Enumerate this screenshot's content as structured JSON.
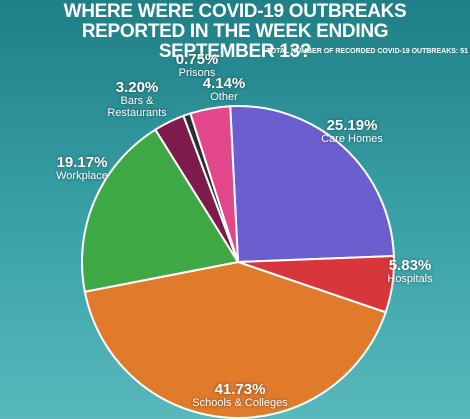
{
  "chart_data": {
    "type": "pie",
    "title": "WHERE WERE COVID-19 OUTBREAKS REPORTED IN THE WEEK ENDING SEPTEMBER 13?",
    "subtitle": "TOTAL NUMBER OF RECORDED COVID-19 OUTBREAKS: 51",
    "categories": [
      "Care Homes",
      "Hospitals",
      "Schools & Colleges",
      "Workplace",
      "Bars & Restaurants",
      "Prisons",
      "Other"
    ],
    "values": [
      25.19,
      5.83,
      41.73,
      19.17,
      3.2,
      0.75,
      4.14
    ],
    "value_labels": [
      "25.19%",
      "5.83%",
      "41.73%",
      "19.17%",
      "3.20%",
      "0.75%",
      "4.14%"
    ],
    "colors": [
      "#6b5fd0",
      "#d9363c",
      "#e07b2c",
      "#3ea845",
      "#7d1c4c",
      "#2e2e2e",
      "#e2478c"
    ]
  }
}
